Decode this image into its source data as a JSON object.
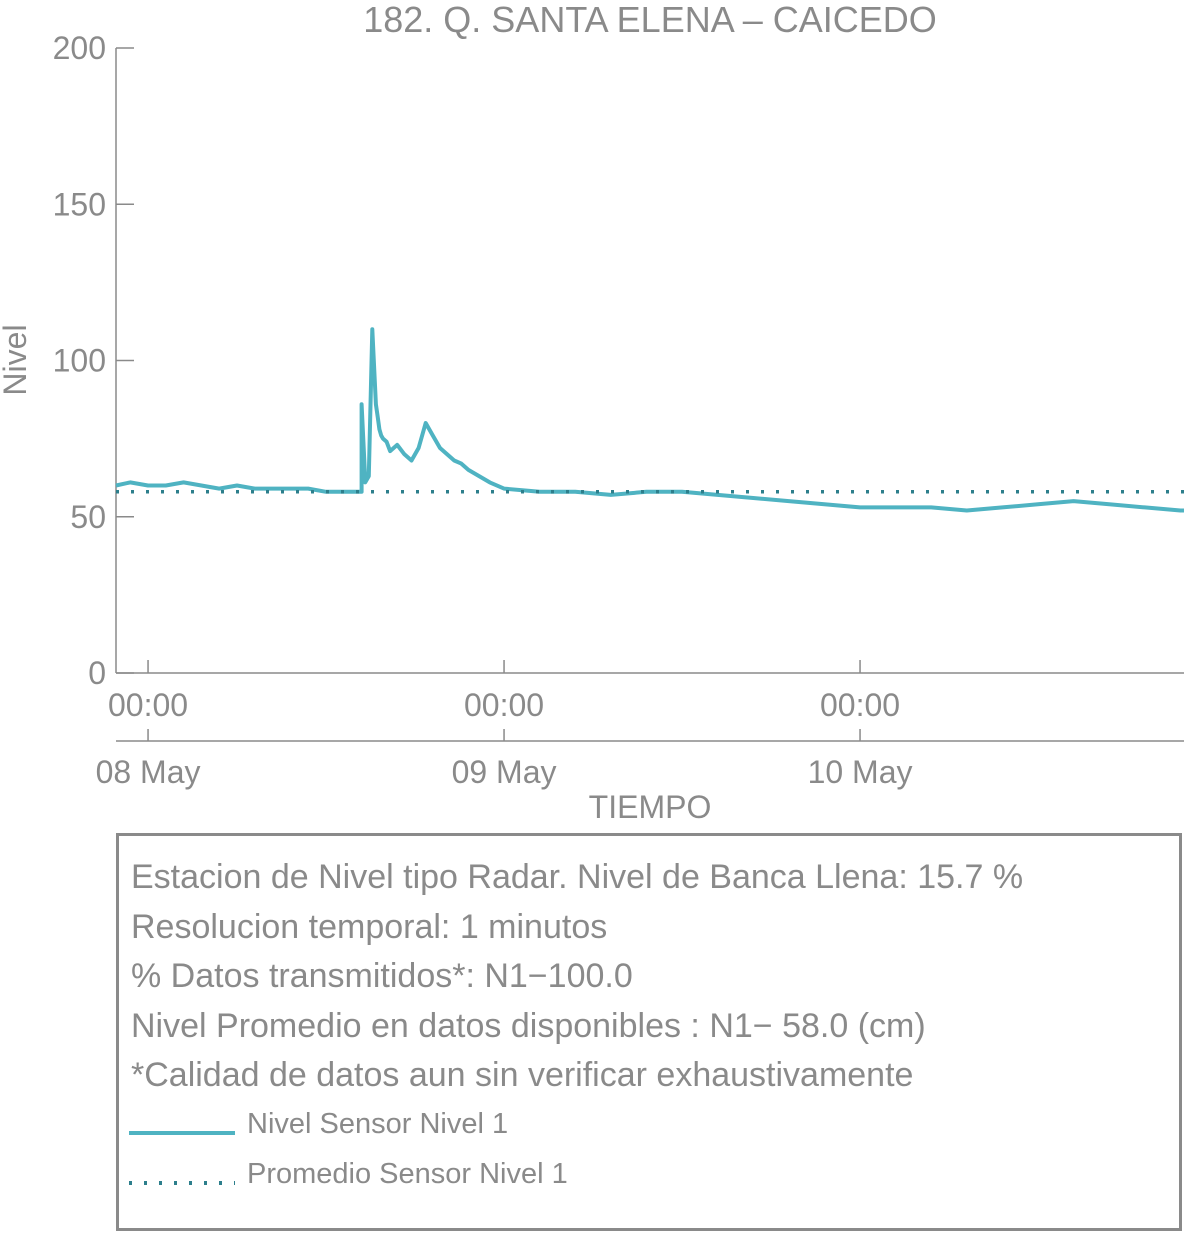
{
  "chart_data": {
    "type": "line",
    "title": "182. Q. SANTA ELENA – CAICEDO",
    "xlabel": "TIEMPO",
    "ylabel": "Nivel",
    "ylim": [
      0,
      200
    ],
    "yticks": [
      "0",
      "50",
      "100",
      "150",
      "200"
    ],
    "xrange_days": [
      7.91,
      10.91
    ],
    "xticks": [
      {
        "day": 8,
        "time": "00:00",
        "date": "08 May"
      },
      {
        "day": 9,
        "time": "00:00",
        "date": "09 May"
      },
      {
        "day": 10,
        "time": "00:00",
        "date": "10 May"
      }
    ],
    "series": [
      {
        "name": "Nivel Sensor Nivel 1",
        "color": "#4fb3c2",
        "style": "solid",
        "x_days": [
          7.91,
          7.95,
          8.0,
          8.05,
          8.1,
          8.15,
          8.2,
          8.25,
          8.3,
          8.35,
          8.4,
          8.45,
          8.5,
          8.55,
          8.6,
          8.6,
          8.61,
          8.61,
          8.62,
          8.63,
          8.64,
          8.645,
          8.65,
          8.655,
          8.66,
          8.67,
          8.68,
          8.7,
          8.72,
          8.74,
          8.76,
          8.78,
          8.8,
          8.81,
          8.82,
          8.84,
          8.86,
          8.88,
          8.9,
          8.93,
          8.96,
          9.0,
          9.1,
          9.2,
          9.3,
          9.4,
          9.5,
          9.6,
          9.7,
          9.8,
          9.9,
          10.0,
          10.1,
          10.2,
          10.3,
          10.4,
          10.5,
          10.6,
          10.7,
          10.8,
          10.9,
          10.91
        ],
        "values": [
          60,
          61,
          60,
          60,
          61,
          60,
          59,
          60,
          59,
          59,
          59,
          59,
          58,
          58,
          58,
          86,
          62,
          61,
          63,
          110,
          86,
          82,
          78,
          76,
          75,
          74,
          71,
          73,
          70,
          68,
          72,
          80,
          76,
          74,
          72,
          70,
          68,
          67,
          65,
          63,
          61,
          59,
          58,
          58,
          57,
          58,
          58,
          57,
          56,
          55,
          54,
          53,
          53,
          53,
          52,
          53,
          54,
          55,
          54,
          53,
          52,
          52
        ]
      },
      {
        "name": "Promedio Sensor Nivel 1",
        "color": "#2d7f8c",
        "style": "dotted",
        "x_days": [
          7.91,
          10.91
        ],
        "values": [
          58,
          58
        ]
      }
    ],
    "annotations": [
      "Estacion de Nivel tipo Radar. Nivel de Banca Llena: 15.7 %",
      "Resolucion temporal: 1 minutos",
      "% Datos transmitidos*: N1−100.0",
      "Nivel Promedio en datos disponibles : N1− 58.0 (cm)",
      "*Calidad de datos aun sin verificar exhaustivamente"
    ]
  }
}
